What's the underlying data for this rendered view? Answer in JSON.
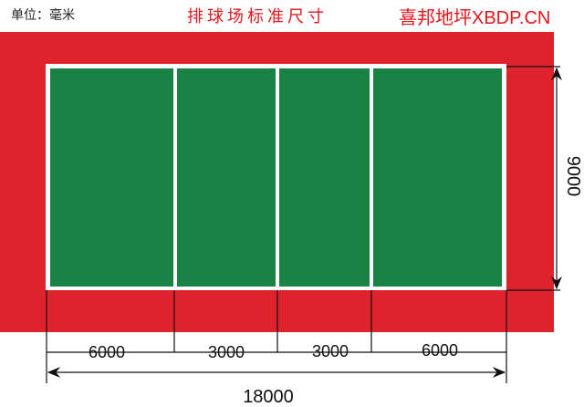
{
  "header": {
    "unit_label": "单位：毫米",
    "title": "排球场标准尺寸",
    "brand": "喜邦地坪XBDP.CN"
  },
  "colors": {
    "surround": "#de232c",
    "court": "#1b8245",
    "lines": "#ffffff",
    "title_text": "#e8141c"
  },
  "dimensions": {
    "width_label": "9000",
    "length_label": "18000",
    "segments": [
      "6000",
      "3000",
      "3000",
      "6000"
    ]
  }
}
